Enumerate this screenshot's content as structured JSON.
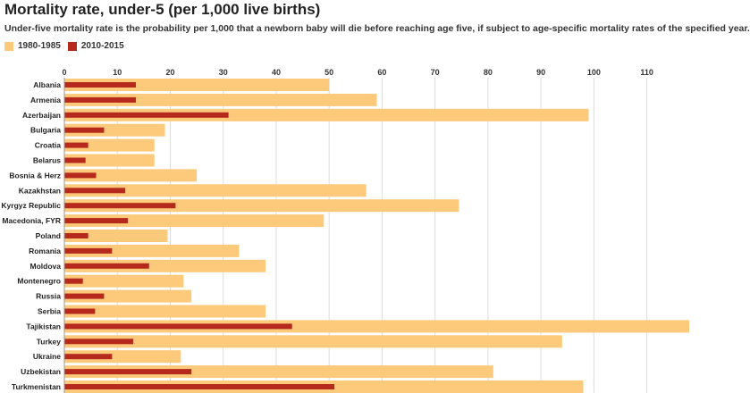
{
  "chart_data": {
    "type": "bar",
    "orientation": "horizontal",
    "title": "Mortality rate, under-5 (per 1,000 live births)",
    "subtitle": "Under-five mortality rate is the probability per 1,000 that a newborn baby will die before reaching age five, if subject to age-specific mortality rates of the specified year.",
    "xlim": [
      0,
      118
    ],
    "xticks": [
      0,
      10,
      20,
      30,
      40,
      50,
      60,
      70,
      80,
      90,
      100,
      110
    ],
    "grid": true,
    "legend_position": "top-left",
    "categories": [
      "Albania",
      "Armenia",
      "Azerbaijan",
      "Bulgaria",
      "Croatia",
      "Belarus",
      "Bosnia & Herz",
      "Kazakhstan",
      "Kyrgyz Republic",
      "Macedonia, FYR",
      "Poland",
      "Romania",
      "Moldova",
      "Montenegro",
      "Russia",
      "Serbia",
      "Tajikistan",
      "Turkey",
      "Ukraine",
      "Uzbekistan",
      "Turkmenistan"
    ],
    "series": [
      {
        "name": "1980-1985",
        "color": "#fdc97a",
        "values": [
          50,
          59,
          99,
          19,
          17,
          17,
          25,
          57,
          74.5,
          49,
          19.5,
          33,
          38,
          22.5,
          24,
          38,
          118,
          94,
          22,
          81,
          98
        ]
      },
      {
        "name": "2010-2015",
        "color": "#b52a1c",
        "values": [
          13.5,
          13.5,
          31,
          7.5,
          4.5,
          4,
          6,
          11.5,
          21,
          12,
          4.5,
          9,
          16,
          3.5,
          7.5,
          5.8,
          43,
          13,
          9,
          24,
          51
        ]
      }
    ]
  }
}
